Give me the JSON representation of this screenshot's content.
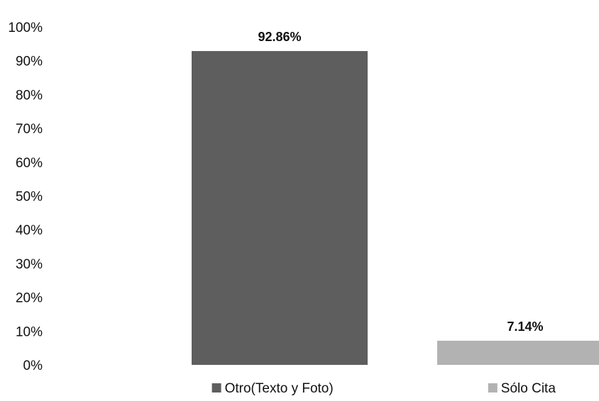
{
  "chart_data": {
    "type": "bar",
    "categories": [
      "Otro(Texto y Foto)",
      "Sólo Cita"
    ],
    "values": [
      92.86,
      7.14
    ],
    "data_labels": [
      "92.86%",
      "7.14%"
    ],
    "colors": [
      "#5e5e5e",
      "#b2b2b2"
    ],
    "ylim": [
      0,
      100
    ],
    "yticks": [
      0,
      10,
      20,
      30,
      40,
      50,
      60,
      70,
      80,
      90,
      100
    ],
    "ytick_labels": [
      "0%",
      "10%",
      "20%",
      "30%",
      "40%",
      "50%",
      "60%",
      "70%",
      "80%",
      "90%",
      "100%"
    ],
    "legend_position": "bottom",
    "grid": false,
    "title": "",
    "xlabel": "",
    "ylabel": ""
  }
}
